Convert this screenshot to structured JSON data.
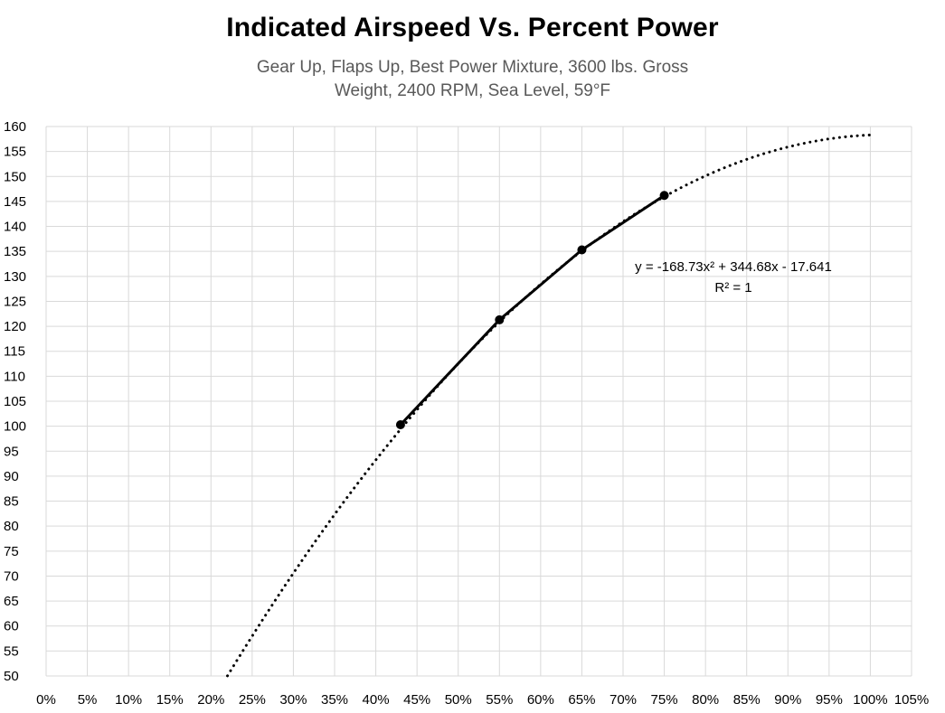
{
  "chart_data": {
    "type": "scatter",
    "title": "Indicated Airspeed Vs. Percent Power",
    "subtitle_lines": [
      "Gear Up, Flaps Up, Best Power Mixture, 3600 lbs. Gross",
      "Weight, 2400 RPM, Sea Level, 59°F"
    ],
    "xlabel": "",
    "ylabel": "",
    "xlim": [
      0,
      1.05
    ],
    "ylim": [
      50,
      160
    ],
    "x_ticks": [
      0,
      0.05,
      0.1,
      0.15,
      0.2,
      0.25,
      0.3,
      0.35,
      0.4,
      0.45,
      0.5,
      0.55,
      0.6,
      0.65,
      0.7,
      0.75,
      0.8,
      0.85,
      0.9,
      0.95,
      1.0,
      1.05
    ],
    "x_tick_labels": [
      "0%",
      "5%",
      "10%",
      "15%",
      "20%",
      "25%",
      "30%",
      "35%",
      "40%",
      "45%",
      "50%",
      "55%",
      "60%",
      "65%",
      "70%",
      "75%",
      "80%",
      "85%",
      "90%",
      "95%",
      "100%",
      "105%"
    ],
    "y_ticks": [
      50,
      55,
      60,
      65,
      70,
      75,
      80,
      85,
      90,
      95,
      100,
      105,
      110,
      115,
      120,
      125,
      130,
      135,
      140,
      145,
      150,
      155,
      160
    ],
    "y_tick_labels": [
      "50",
      "55",
      "60",
      "65",
      "70",
      "75",
      "80",
      "85",
      "90",
      "95",
      "100",
      "105",
      "110",
      "115",
      "120",
      "125",
      "130",
      "135",
      "140",
      "145",
      "150",
      "155",
      "160"
    ],
    "grid": true,
    "series": [
      {
        "x": [
          0.43,
          0.55,
          0.65,
          0.75
        ],
        "y": [
          100.3,
          121.3,
          135.3,
          146.2
        ],
        "color": "#000000",
        "line": "solid",
        "marker": "circle"
      }
    ],
    "trendline": {
      "type": "polynomial",
      "coefficients": [
        -168.73,
        344.68,
        -17.641
      ],
      "x_range": [
        0.22,
        1.0
      ],
      "style": "dotted",
      "color": "#000000",
      "equation_label": "y = -168.73x² + 344.68x - 17.641",
      "r2_label": "R² = 1"
    }
  }
}
